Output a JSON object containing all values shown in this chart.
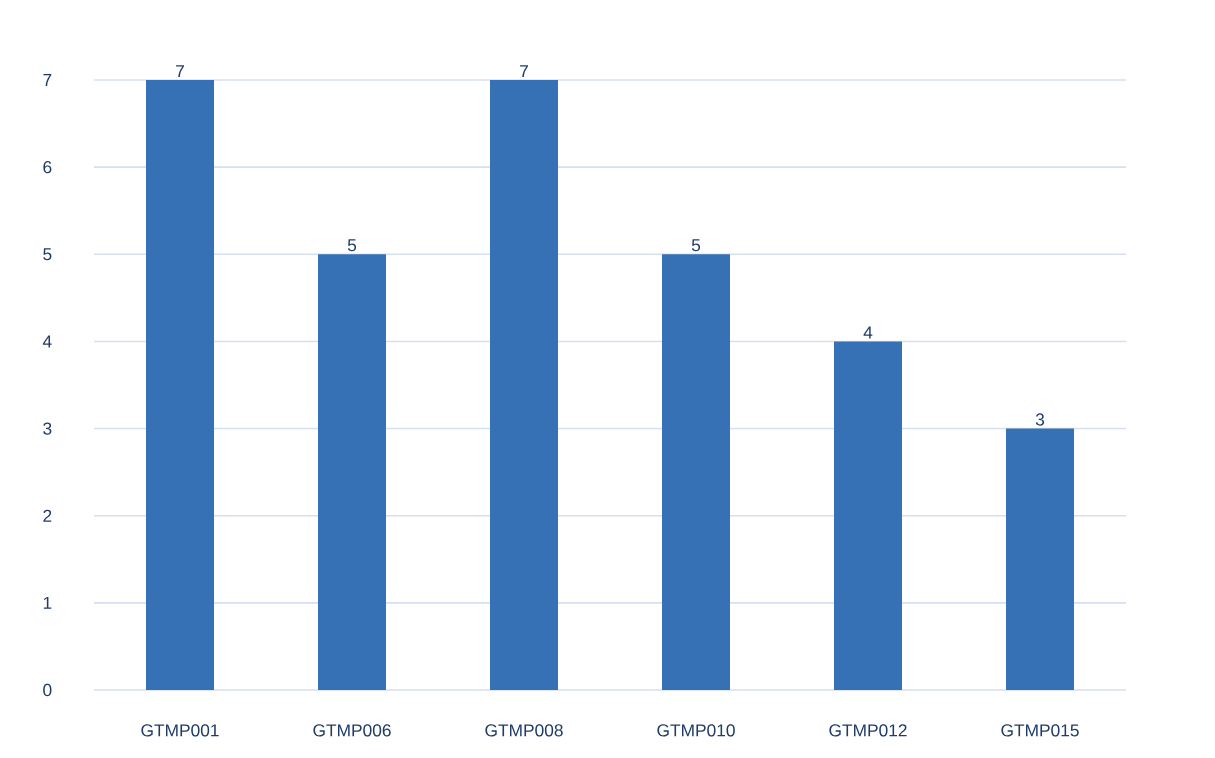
{
  "chart_data": {
    "type": "bar",
    "categories": [
      "GTMP001",
      "GTMP006",
      "GTMP008",
      "GTMP010",
      "GTMP012",
      "GTMP015"
    ],
    "values": [
      7,
      5,
      7,
      5,
      4,
      3
    ],
    "color": "#3670b5",
    "ylim": [
      0,
      7
    ],
    "yticks": [
      0,
      1,
      2,
      3,
      4,
      5,
      6,
      7
    ],
    "grid": "y",
    "data_labels": true
  }
}
